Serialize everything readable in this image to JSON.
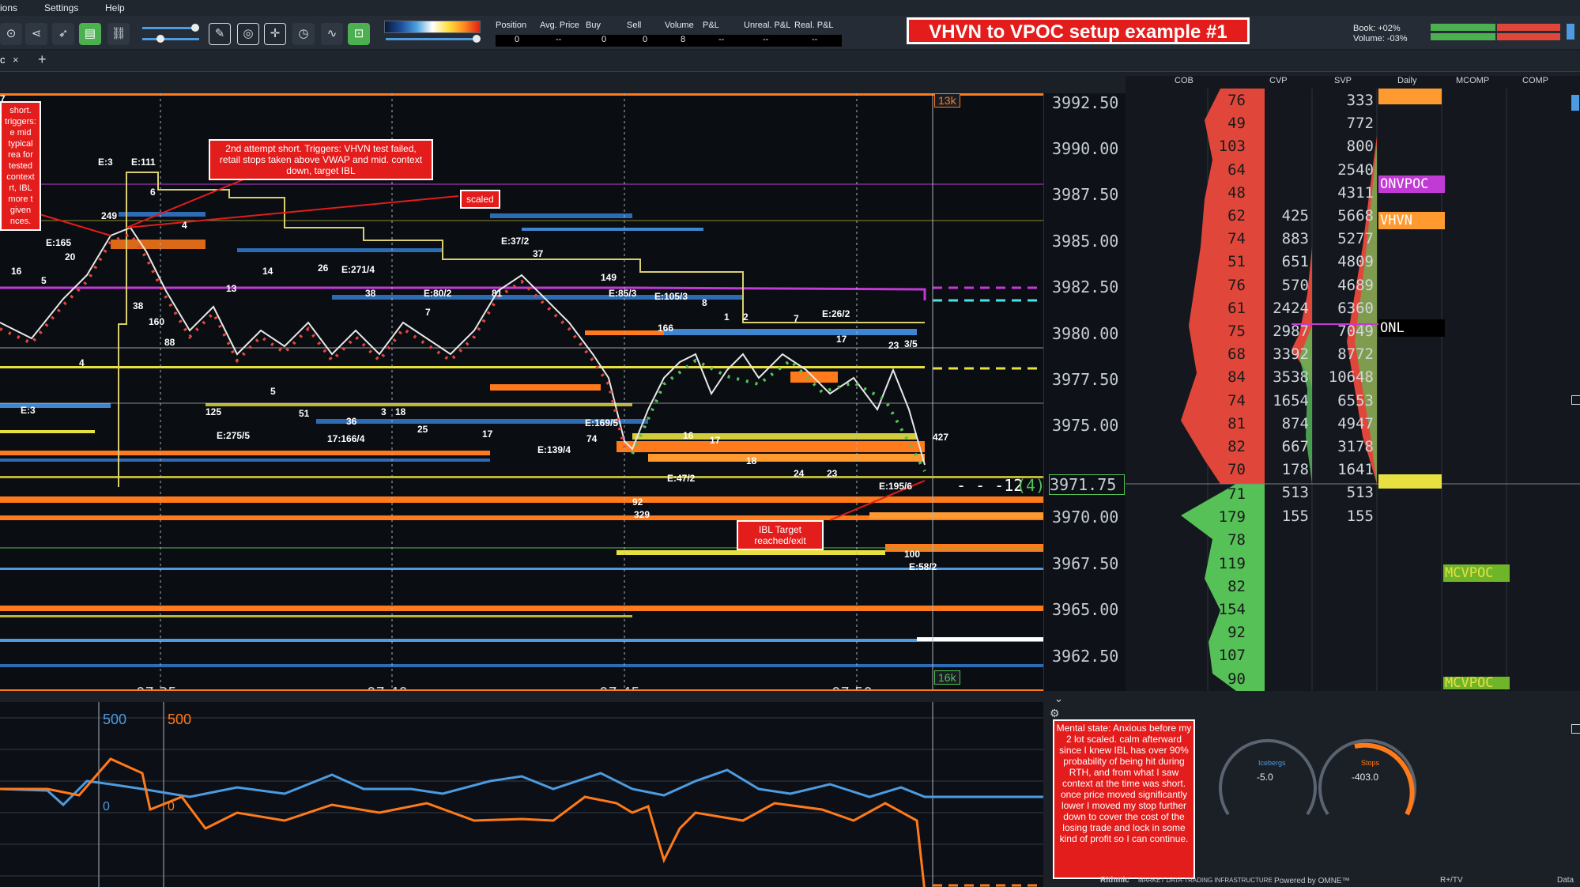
{
  "menu": {
    "items": [
      "ions",
      "Settings",
      "Help"
    ]
  },
  "tab": {
    "label": "c",
    "close": "×",
    "add": "+"
  },
  "positions": {
    "headers": [
      "Position",
      "Avg. Price",
      "Buy",
      "Sell",
      "Volume",
      "P&L",
      "Unreal. P&L",
      "Real. P&L"
    ],
    "values": [
      "0",
      "--",
      "0",
      "0",
      "8",
      "--",
      "--",
      "--"
    ]
  },
  "title": "VHVN to VPOC setup example #1",
  "book": {
    "book_label": "Book:",
    "book_value": "+02%",
    "volume_label": "Volume:",
    "volume_value": "-03%"
  },
  "columns": {
    "cob": "COB",
    "cvp": "CVP",
    "svp": "SVP",
    "daily": "Daily",
    "mcomp": "MCOMP",
    "comp": "COMP"
  },
  "price_axis": {
    "labels": [
      "3992.50",
      "3990.00",
      "3987.50",
      "3985.00",
      "3982.50",
      "3980.00",
      "3977.50",
      "3975.00",
      "3971.75",
      "3970.00",
      "3967.50",
      "3965.00",
      "3962.50"
    ],
    "current": "3971.75",
    "position_marker": "- - -12",
    "position_marker_sub": "(4)"
  },
  "cob": {
    "ask": [
      "76",
      "49",
      "103",
      "64",
      "48",
      "62",
      "74",
      "51",
      "76",
      "61",
      "75",
      "68",
      "84",
      "74",
      "81",
      "82",
      "70"
    ],
    "bid": [
      "71",
      "179",
      "78",
      "119",
      "82",
      "154",
      "92",
      "107",
      "90"
    ]
  },
  "cvp": [
    "425",
    "883",
    "651",
    "570",
    "2424",
    "2987",
    "3392",
    "3538",
    "1654",
    "874",
    "667",
    "178",
    "513",
    "155"
  ],
  "svp": [
    "333",
    "772",
    "800",
    "2540",
    "4311",
    "5668",
    "5277",
    "4809",
    "4689",
    "6360",
    "7049",
    "8772",
    "10648",
    "6553",
    "4947",
    "3178",
    "1641",
    "513",
    "155"
  ],
  "daily_labels": {
    "onvpoc": "ONVPOC",
    "vhvn": "VHVN",
    "onl": "ONL",
    "mcvpoc": "MCVPOC",
    "mcvpoc2": "MCVPOC"
  },
  "chart": {
    "time_ticks": [
      "07:35",
      "07:40",
      "07:45",
      "07:50"
    ],
    "volume_top": "13k",
    "volume_bottom": "16k",
    "marker_labels": [
      "E:3",
      "E:111",
      "6",
      "249",
      "4",
      "E:165",
      "20",
      "16",
      "5",
      "38",
      "13",
      "14",
      "26",
      "E:271/4",
      "38",
      "E:80/2",
      "7",
      "81",
      "E:37/2",
      "37",
      "149",
      "E:85/3",
      "E:105/3",
      "8",
      "166",
      "1",
      "2",
      "7",
      "E:26/2",
      "17",
      "23",
      "3/5",
      "160",
      "88",
      "4",
      "125",
      "5",
      "51",
      "36",
      "3",
      "18",
      "25",
      "17",
      "E:169/5",
      "E:3",
      "E:275/5",
      "17:166/4",
      "74",
      "E:139/4",
      "16",
      "17",
      "18",
      "24",
      "23",
      "E:47/2",
      "E:195/6",
      "92",
      "329",
      "100",
      "E:58/2",
      "427",
      "7"
    ]
  },
  "callouts": {
    "left": "short. triggers: e mid typical rea for tested context rt, IBL more t given nces.",
    "second_attempt": "2nd attempt short. Triggers: VHVN test failed, retail stops taken above VWAP and mid. context down, target IBL",
    "scaled": "scaled",
    "ibl": "IBL Target reached/exit"
  },
  "lower_panel": {
    "left_label": "500",
    "right_label": "500",
    "zero_left": "0",
    "zero_right": "0"
  },
  "note": "Mental state: Anxious before my 2 lot scaled. calm afterward since I knew IBL has over 90% probability of being hit during RTH, and from what I saw context at the time was short. once price moved significantly lower I moved my stop further down to cover the cost of the losing trade and lock in some kind of profit so I can continue.",
  "gauges": {
    "icebergs_label": "Icebergs",
    "icebergs_value": "-5.0",
    "stops_label": "Stops",
    "stops_value": "-403.0"
  },
  "footer": {
    "rithmic": "Rithmic",
    "rithmic_sub": "MARKET DATA·TRADING INFRASTRUCTURE",
    "omne": "Powered by OMNE™",
    "rtv": "R+/TV",
    "data": "Data"
  },
  "colors": {
    "ask": "#e0473a",
    "bid": "#55c157",
    "accent": "#e31c1c",
    "orange": "#ff7a1a",
    "yellow": "#e8e040",
    "magenta": "#c23ad6"
  }
}
